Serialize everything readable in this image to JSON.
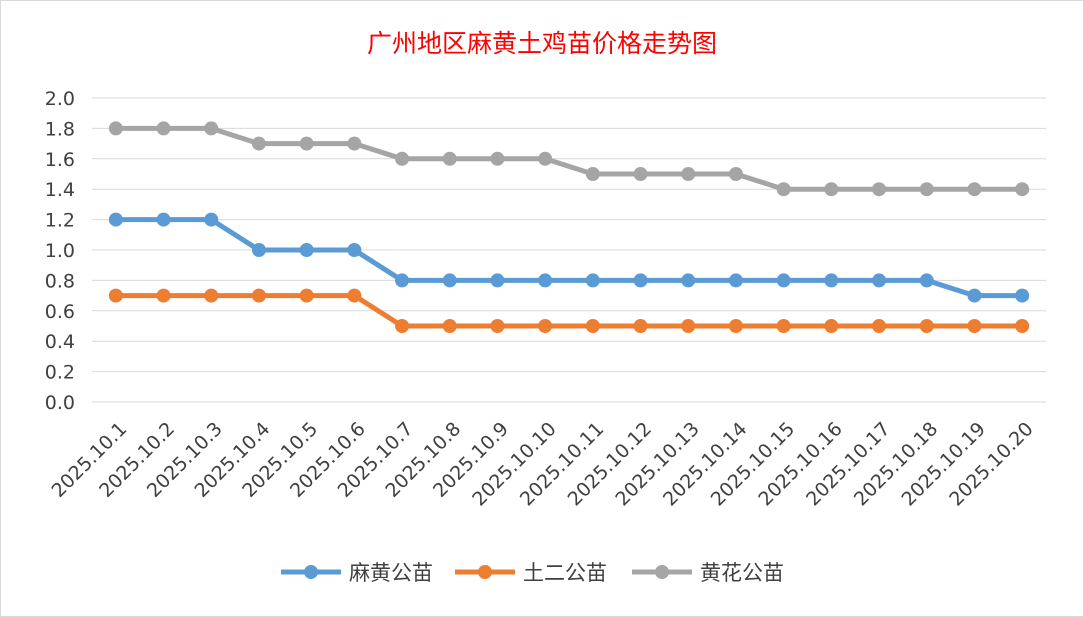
{
  "chart_data": {
    "type": "line",
    "title": "广州地区麻黄土鸡苗价格走势图",
    "categories": [
      "2025.10.1",
      "2025.10.2",
      "2025.10.3",
      "2025.10.4",
      "2025.10.5",
      "2025.10.6",
      "2025.10.7",
      "2025.10.8",
      "2025.10.9",
      "2025.10.10",
      "2025.10.11",
      "2025.10.12",
      "2025.10.13",
      "2025.10.14",
      "2025.10.15",
      "2025.10.16",
      "2025.10.17",
      "2025.10.18",
      "2025.10.19",
      "2025.10.20"
    ],
    "series": [
      {
        "name": "麻黄公苗",
        "color": "#5b9bd5",
        "values": [
          1.2,
          1.2,
          1.2,
          1.0,
          1.0,
          1.0,
          0.8,
          0.8,
          0.8,
          0.8,
          0.8,
          0.8,
          0.8,
          0.8,
          0.8,
          0.8,
          0.8,
          0.8,
          0.7,
          0.7
        ]
      },
      {
        "name": "土二公苗",
        "color": "#ed7d31",
        "values": [
          0.7,
          0.7,
          0.7,
          0.7,
          0.7,
          0.7,
          0.5,
          0.5,
          0.5,
          0.5,
          0.5,
          0.5,
          0.5,
          0.5,
          0.5,
          0.5,
          0.5,
          0.5,
          0.5,
          0.5
        ]
      },
      {
        "name": "黄花公苗",
        "color": "#a5a5a5",
        "values": [
          1.8,
          1.8,
          1.8,
          1.7,
          1.7,
          1.7,
          1.6,
          1.6,
          1.6,
          1.6,
          1.5,
          1.5,
          1.5,
          1.5,
          1.4,
          1.4,
          1.4,
          1.4,
          1.4,
          1.4
        ]
      }
    ],
    "yticks": [
      "0.0",
      "0.2",
      "0.4",
      "0.6",
      "0.8",
      "1.0",
      "1.2",
      "1.4",
      "1.6",
      "1.8",
      "2.0"
    ],
    "ylim": [
      0,
      2.0
    ],
    "grid": true,
    "legend": "bottom",
    "title_color": "#ff0000"
  }
}
